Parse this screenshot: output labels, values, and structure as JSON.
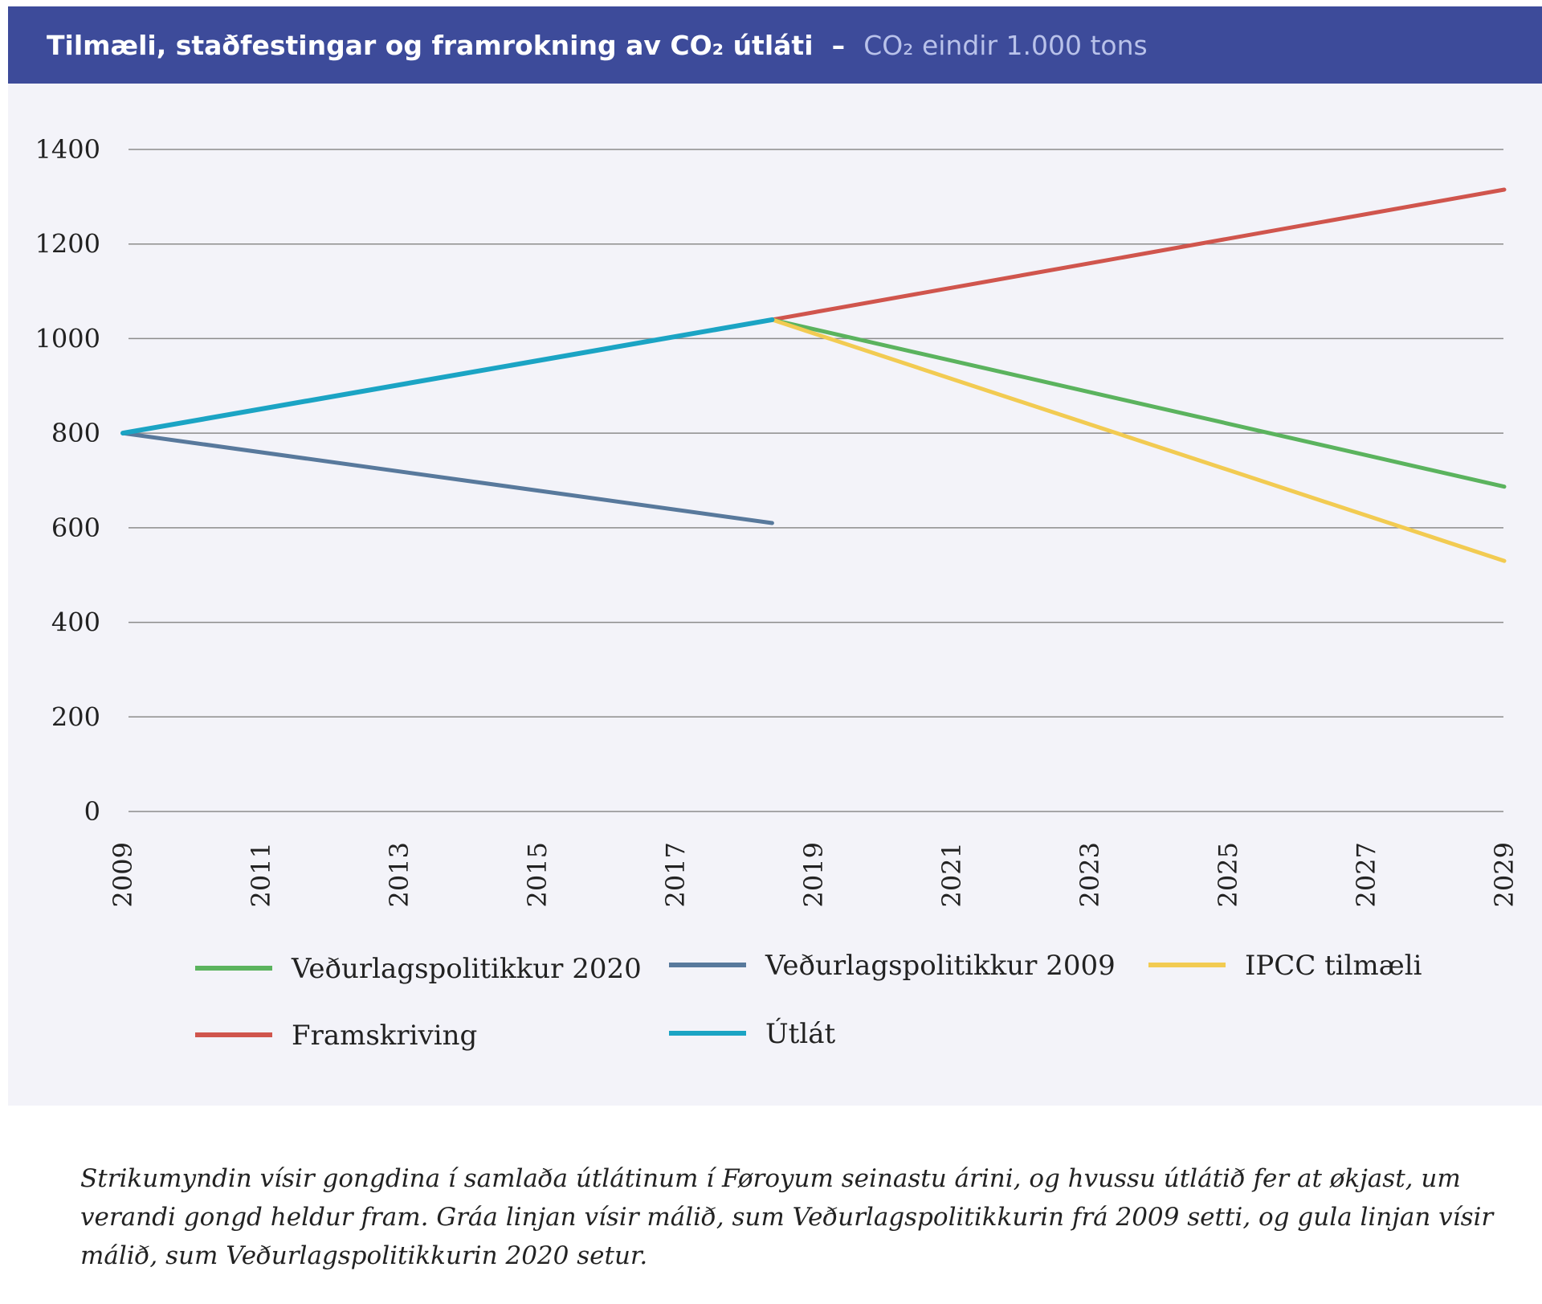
{
  "header": {
    "title": "Tilmæli, staðfestingar og framrokning av CO₂ útláti",
    "separator": "–",
    "subtitle": "CO₂ eindir 1.000 tons"
  },
  "caption": "Strikumyndin vísir gongdina í samlaða útlátinum í Føroyum seinastu árini, og hvussu útlátið fer at økjast, um verandi gongd heldur fram. Gráa linjan vísir málið, sum Veðurlagspolitikkurin frá 2009 setti, og gula linjan vísir málið, sum Veðurlagspolitikkurin 2020 setur.",
  "chart_data": {
    "type": "line",
    "title": "Tilmæli, staðfestingar og framrokning av CO₂ útláti",
    "subtitle": "CO₂ eindir 1.000 tons",
    "xlabel": "",
    "ylabel": "",
    "xlim": [
      2009,
      2029
    ],
    "ylim": [
      0,
      1400
    ],
    "x_ticks": [
      "2009",
      "2011",
      "2013",
      "2015",
      "2017",
      "2019",
      "2021",
      "2023",
      "2025",
      "2027",
      "2029"
    ],
    "y_ticks": [
      "0",
      "200",
      "400",
      "600",
      "800",
      "1000",
      "1200",
      "1400"
    ],
    "grid": true,
    "legend_position": "bottom",
    "series": [
      {
        "name": "Veðurlagspolitikkur 2020",
        "color": "#5bb35e",
        "points": [
          [
            2018.4,
            1040
          ],
          [
            2029,
            687
          ]
        ]
      },
      {
        "name": "Veðurlagspolitikkur 2009",
        "color": "#58799c",
        "points": [
          [
            2009,
            800
          ],
          [
            2018.4,
            610
          ]
        ]
      },
      {
        "name": "IPCC tilmæli",
        "color": "#f2cb52",
        "points": [
          [
            2018.4,
            1040
          ],
          [
            2029,
            530
          ]
        ]
      },
      {
        "name": "Framskriving",
        "color": "#d0554d",
        "points": [
          [
            2018.4,
            1040
          ],
          [
            2029,
            1315
          ]
        ]
      },
      {
        "name": "Útlát",
        "color": "#1ba4c4",
        "points": [
          [
            2009,
            800
          ],
          [
            2018.4,
            1040
          ]
        ]
      }
    ]
  }
}
